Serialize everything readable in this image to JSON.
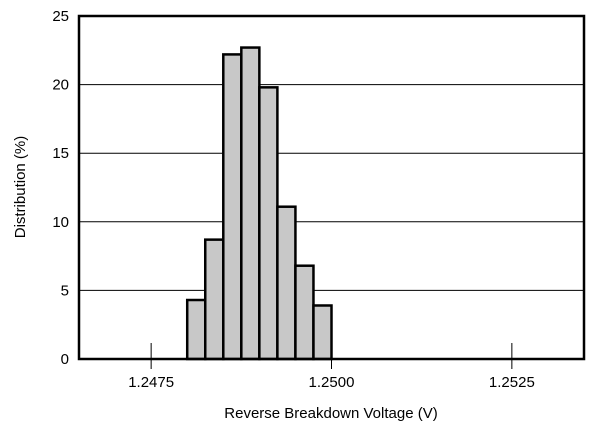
{
  "chart_data": {
    "type": "bar",
    "title": "",
    "xlabel": "Reverse Breakdown Voltage (V)",
    "ylabel": "Distribution (%)",
    "xlim": [
      1.2465,
      1.2535
    ],
    "ylim": [
      0,
      25
    ],
    "x_ticks": [
      1.2475,
      1.25,
      1.2525
    ],
    "x_tick_labels": [
      "1.2475",
      "1.2500",
      "1.2525"
    ],
    "y_ticks": [
      0,
      5,
      10,
      15,
      20,
      25
    ],
    "y_tick_labels": [
      "0",
      "5",
      "10",
      "15",
      "20",
      "25"
    ],
    "grid": "horizontal",
    "legend": "none",
    "bars": [
      {
        "x_start": 1.248,
        "x_end": 1.24825,
        "value": 4.3
      },
      {
        "x_start": 1.24825,
        "x_end": 1.2485,
        "value": 8.7
      },
      {
        "x_start": 1.2485,
        "x_end": 1.24875,
        "value": 22.2
      },
      {
        "x_start": 1.24875,
        "x_end": 1.249,
        "value": 22.7
      },
      {
        "x_start": 1.249,
        "x_end": 1.24925,
        "value": 19.8
      },
      {
        "x_start": 1.24925,
        "x_end": 1.2495,
        "value": 11.1
      },
      {
        "x_start": 1.2495,
        "x_end": 1.24975,
        "value": 6.8
      },
      {
        "x_start": 1.24975,
        "x_end": 1.25,
        "value": 3.9
      }
    ],
    "colors": {
      "bar_fill": "#c8c8c8",
      "bar_stroke": "#000000",
      "grid": "#000000",
      "frame": "#000000",
      "background": "#ffffff"
    }
  }
}
